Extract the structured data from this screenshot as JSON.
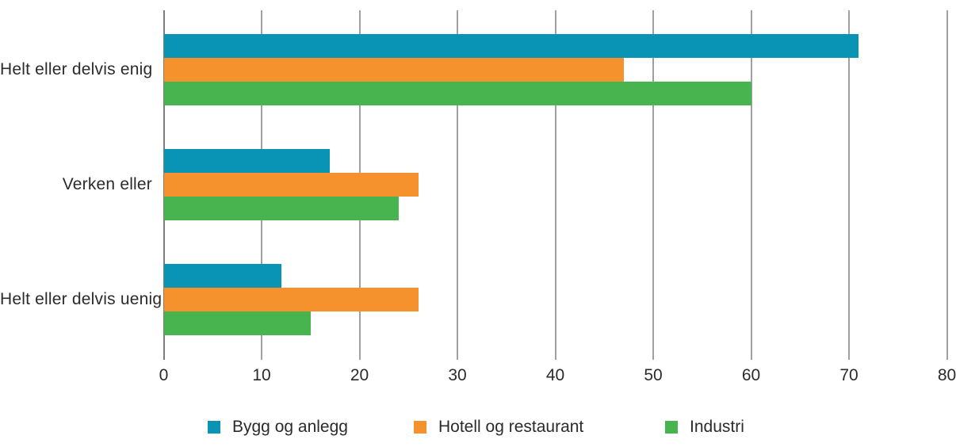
{
  "chart_data": {
    "type": "bar",
    "orientation": "horizontal",
    "title": "",
    "xlabel": "",
    "ylabel": "",
    "categories": [
      "Helt eller delvis enig",
      "Verken eller",
      "Helt eller delvis uenig"
    ],
    "series": [
      {
        "name": "Bygg og anlegg",
        "color": "#0994b5",
        "values": [
          71,
          17,
          12
        ]
      },
      {
        "name": "Hotell og restaurant",
        "color": "#f6922e",
        "values": [
          47,
          26,
          26
        ]
      },
      {
        "name": "Industri",
        "color": "#47b450",
        "values": [
          60,
          24,
          15
        ]
      }
    ],
    "xlim": [
      0,
      80
    ],
    "x_ticks": [
      0,
      10,
      20,
      30,
      40,
      50,
      60,
      70,
      80
    ],
    "grid": "vertical-gridlines",
    "legend_position": "bottom"
  },
  "colors": {
    "background": "#ffffff",
    "gridline": "#a0a0a0",
    "axis_line": "#7d7d7d",
    "text": "#2b2b2b"
  }
}
